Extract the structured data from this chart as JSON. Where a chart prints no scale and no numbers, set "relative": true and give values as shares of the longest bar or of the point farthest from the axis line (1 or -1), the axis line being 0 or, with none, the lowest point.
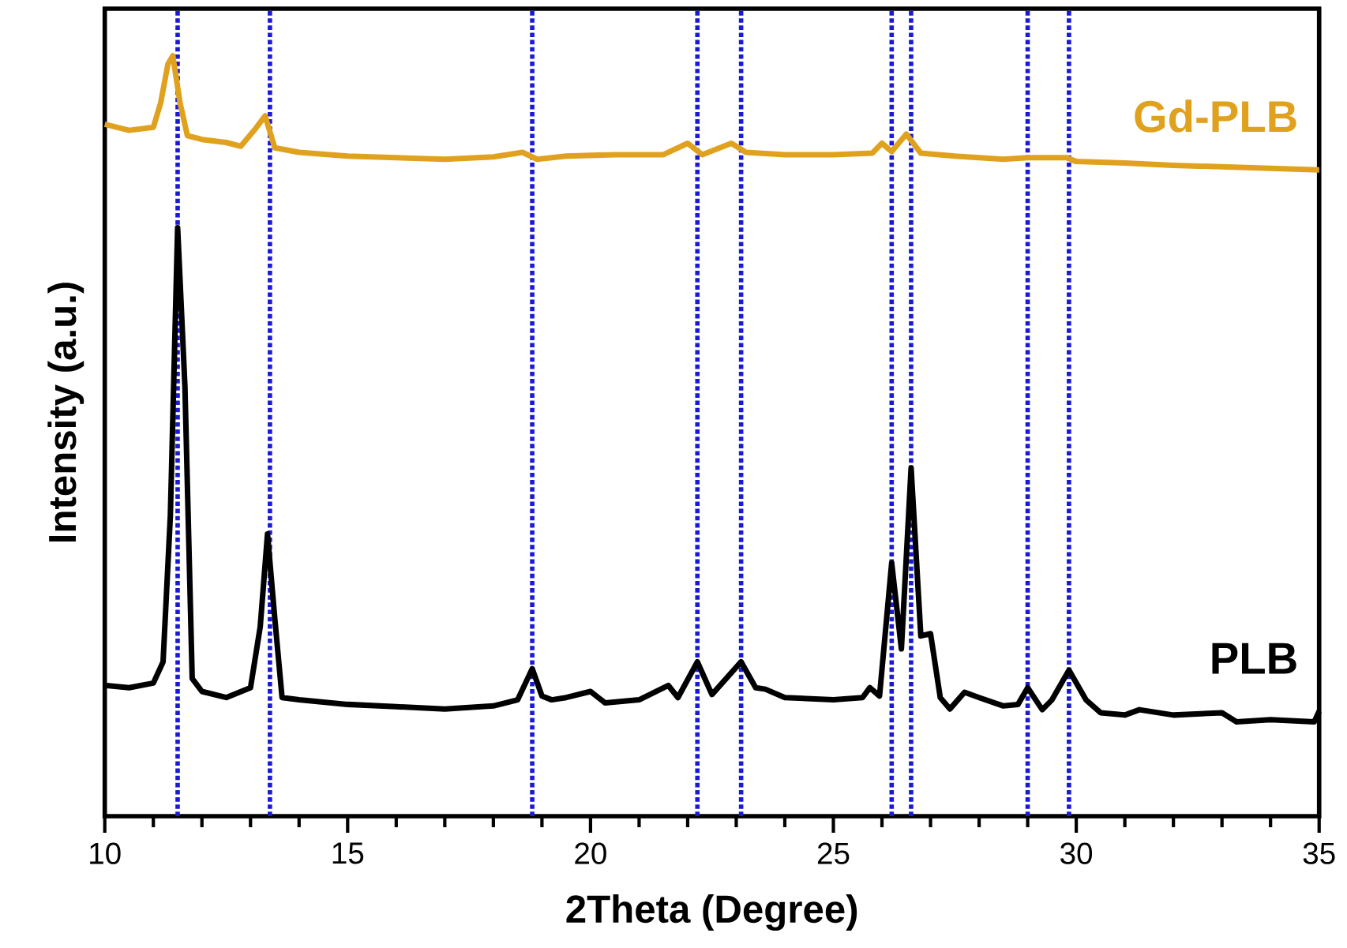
{
  "chart_data": {
    "type": "line",
    "xlabel": "2Theta (Degree)",
    "ylabel": "Intensity (a.u.)",
    "relative": true,
    "xlim": [
      10,
      35
    ],
    "xticks": [
      10,
      15,
      20,
      25,
      30,
      35
    ],
    "series": [
      {
        "name": "Gd-PLB",
        "color": "#e0a21e",
        "x": [
          10,
          10.5,
          11.0,
          11.15,
          11.3,
          11.4,
          11.55,
          11.7,
          12,
          12.5,
          12.8,
          13.1,
          13.3,
          13.5,
          14,
          15,
          16,
          17,
          18,
          18.6,
          18.9,
          19.5,
          20.5,
          21.5,
          22.0,
          22.3,
          22.9,
          23.2,
          24,
          25,
          25.8,
          26.0,
          26.2,
          26.5,
          26.8,
          27.5,
          28.5,
          29,
          29.8,
          30,
          31,
          32,
          33,
          34,
          35
        ],
        "values": [
          0.91,
          0.902,
          0.906,
          0.938,
          0.989,
          1.0,
          0.938,
          0.895,
          0.89,
          0.886,
          0.881,
          0.904,
          0.921,
          0.879,
          0.873,
          0.868,
          0.866,
          0.864,
          0.867,
          0.873,
          0.864,
          0.868,
          0.87,
          0.87,
          0.885,
          0.87,
          0.885,
          0.873,
          0.87,
          0.87,
          0.872,
          0.885,
          0.874,
          0.897,
          0.872,
          0.868,
          0.864,
          0.866,
          0.866,
          0.861,
          0.859,
          0.856,
          0.854,
          0.852,
          0.85
        ]
      },
      {
        "name": "PLB",
        "color": "#000000",
        "x": [
          10,
          10.5,
          11.0,
          11.2,
          11.35,
          11.5,
          11.65,
          11.8,
          12.0,
          12.5,
          13.0,
          13.2,
          13.35,
          13.5,
          13.65,
          14,
          15,
          16,
          17,
          18,
          18.5,
          18.8,
          19.0,
          19.2,
          19.5,
          20.0,
          20.3,
          21.0,
          21.6,
          21.8,
          22.2,
          22.5,
          23.1,
          23.4,
          23.6,
          24,
          25,
          25.6,
          25.75,
          25.95,
          26.2,
          26.4,
          26.6,
          26.8,
          27.0,
          27.2,
          27.4,
          27.7,
          28.0,
          28.5,
          28.8,
          29.0,
          29.3,
          29.5,
          29.85,
          30.2,
          30.5,
          31,
          31.3,
          32,
          33,
          33.3,
          34,
          34.9,
          35
        ],
        "values": [
          0.172,
          0.169,
          0.175,
          0.203,
          0.395,
          0.774,
          0.565,
          0.181,
          0.164,
          0.156,
          0.169,
          0.249,
          0.371,
          0.26,
          0.156,
          0.153,
          0.147,
          0.144,
          0.141,
          0.145,
          0.153,
          0.194,
          0.158,
          0.153,
          0.156,
          0.164,
          0.149,
          0.153,
          0.172,
          0.156,
          0.203,
          0.16,
          0.203,
          0.169,
          0.167,
          0.156,
          0.153,
          0.156,
          0.169,
          0.158,
          0.333,
          0.22,
          0.458,
          0.237,
          0.24,
          0.156,
          0.141,
          0.163,
          0.156,
          0.145,
          0.147,
          0.169,
          0.14,
          0.153,
          0.192,
          0.153,
          0.136,
          0.133,
          0.14,
          0.133,
          0.136,
          0.124,
          0.127,
          0.124,
          0.138
        ]
      }
    ],
    "ref_lines": [
      {
        "axis": "x",
        "value": 11.5,
        "color": "#1a1ad6",
        "line_style": "dotted"
      },
      {
        "axis": "x",
        "value": 13.4,
        "color": "#1a1ad6",
        "line_style": "dotted"
      },
      {
        "axis": "x",
        "value": 18.8,
        "color": "#1a1ad6",
        "line_style": "dotted"
      },
      {
        "axis": "x",
        "value": 22.2,
        "color": "#1a1ad6",
        "line_style": "dotted"
      },
      {
        "axis": "x",
        "value": 23.1,
        "color": "#1a1ad6",
        "line_style": "dotted"
      },
      {
        "axis": "x",
        "value": 26.2,
        "color": "#1a1ad6",
        "line_style": "dotted"
      },
      {
        "axis": "x",
        "value": 26.6,
        "color": "#1a1ad6",
        "line_style": "dotted"
      },
      {
        "axis": "x",
        "value": 29.0,
        "color": "#1a1ad6",
        "line_style": "dotted"
      },
      {
        "axis": "x",
        "value": 29.85,
        "color": "#1a1ad6",
        "line_style": "dotted"
      }
    ]
  }
}
